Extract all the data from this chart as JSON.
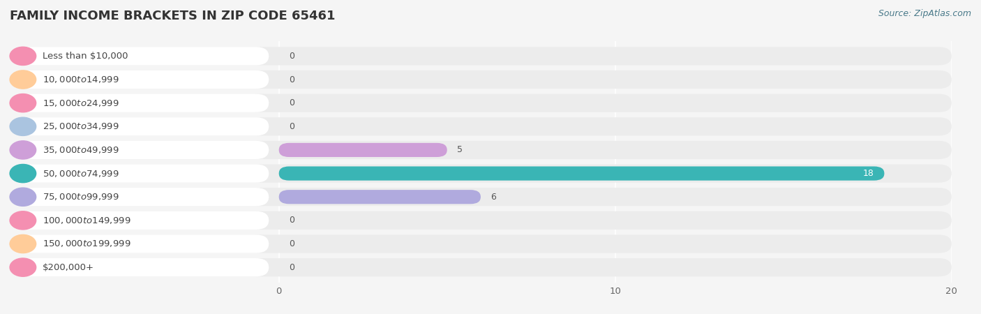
{
  "title": "FAMILY INCOME BRACKETS IN ZIP CODE 65461",
  "source": "Source: ZipAtlas.com",
  "categories": [
    "Less than $10,000",
    "$10,000 to $14,999",
    "$15,000 to $24,999",
    "$25,000 to $34,999",
    "$35,000 to $49,999",
    "$50,000 to $74,999",
    "$75,000 to $99,999",
    "$100,000 to $149,999",
    "$150,000 to $199,999",
    "$200,000+"
  ],
  "values": [
    0,
    0,
    0,
    0,
    5,
    18,
    6,
    0,
    0,
    0
  ],
  "bar_colors": [
    "#f48fb1",
    "#ffcc99",
    "#f48fb1",
    "#aac4e0",
    "#ce9fd8",
    "#3ab5b5",
    "#b0aade",
    "#f48fb1",
    "#ffcc99",
    "#f48fb1"
  ],
  "bg_color": "#f5f5f5",
  "row_bg_color": "#ececec",
  "white_pill_color": "#ffffff",
  "xlim_data": [
    0,
    20
  ],
  "title_fontsize": 13,
  "label_fontsize": 9.5,
  "value_fontsize": 9,
  "source_fontsize": 9
}
